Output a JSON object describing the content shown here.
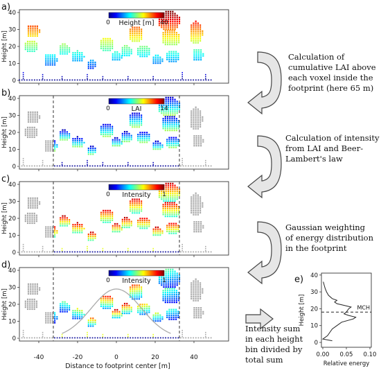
{
  "panels": [
    {
      "id": "a",
      "letter": "a)",
      "colorbar": {
        "min": "0",
        "max": "40",
        "label": "Height [m]"
      },
      "footprint_lines": false,
      "gaussian": false,
      "description": [
        "Calculation of",
        "cumulative LAI above",
        "each voxel inside the",
        "footprint (here 65 m)"
      ]
    },
    {
      "id": "b",
      "letter": "b)",
      "colorbar": {
        "min": "0",
        "max": "14",
        "label": "LAI"
      },
      "footprint_lines": true,
      "gaussian": false,
      "description": [
        "Calculation of intensity",
        "from LAI and Beer-",
        "Lambert's law"
      ]
    },
    {
      "id": "c",
      "letter": "c)",
      "colorbar": {
        "min": "0",
        "max": "1",
        "label": "Intensity"
      },
      "footprint_lines": true,
      "gaussian": false,
      "description": [
        "Gaussian weighting",
        "of energy distribution",
        "in the footprint"
      ]
    },
    {
      "id": "d",
      "letter": "d)",
      "colorbar": {
        "min": "0",
        "max": "1",
        "label": "Intensity"
      },
      "footprint_lines": true,
      "gaussian": true,
      "description": [
        "Intensity sum",
        "in each height",
        "bin divided by",
        "total sum"
      ]
    }
  ],
  "y_axis_label": "Height [m]",
  "y_ticks": [
    "0",
    "10",
    "20",
    "30",
    "40"
  ],
  "x_axis_label": "Distance to footprint center [m]",
  "x_ticks": [
    "-40",
    "-20",
    "0",
    "20",
    "40"
  ],
  "panel_e": {
    "letter": "e)",
    "ylabel": "Height [m]",
    "xlabel": "Relative energy",
    "x_ticks": [
      "0.00",
      "0.05",
      "0.10"
    ],
    "y_ticks": [
      "0",
      "10",
      "20",
      "30",
      "40"
    ],
    "mch_label": "MCH",
    "mch_height": 18,
    "profile": [
      [
        0.02,
        1
      ],
      [
        0.0,
        2
      ],
      [
        0.01,
        4
      ],
      [
        0.015,
        6
      ],
      [
        0.02,
        8
      ],
      [
        0.03,
        10
      ],
      [
        0.04,
        12
      ],
      [
        0.065,
        14
      ],
      [
        0.07,
        15
      ],
      [
        0.055,
        16
      ],
      [
        0.045,
        17
      ],
      [
        0.05,
        18
      ],
      [
        0.055,
        20
      ],
      [
        0.06,
        21
      ],
      [
        0.045,
        22
      ],
      [
        0.03,
        23
      ],
      [
        0.025,
        24
      ],
      [
        0.03,
        25
      ],
      [
        0.02,
        26
      ],
      [
        0.012,
        28
      ],
      [
        0.008,
        30
      ],
      [
        0.005,
        32
      ],
      [
        0.003,
        34
      ],
      [
        0.001,
        36
      ]
    ]
  },
  "colors": {
    "grey": "#a9a9a9",
    "dashed": "#333333",
    "arrow_fill": "#e6e6e6",
    "arrow_stroke": "#444444",
    "gaussian": "#aaaaaa",
    "ground": "#1a1aa0"
  }
}
